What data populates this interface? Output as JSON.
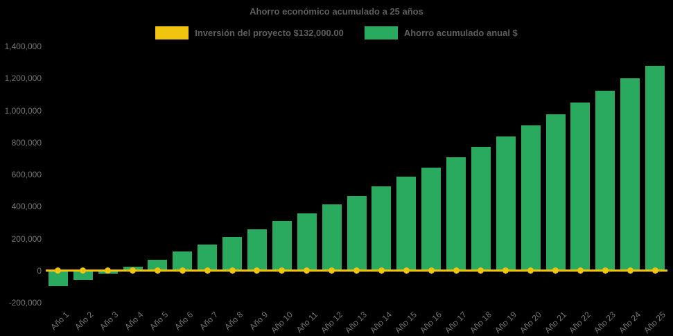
{
  "page": {
    "background_color": "#000000",
    "text_color_title": "#5f5f5f",
    "text_color_axis": "#767676"
  },
  "chart": {
    "title": "Ahorro económico acumulado a 25 años",
    "legend": [
      {
        "label": "Inversión del proyecto $132,000.00",
        "color": "#f1c40f",
        "series_type": "line"
      },
      {
        "label": "Ahorro acumulado anual $",
        "color": "#2aaa5e",
        "series_type": "bar"
      }
    ]
  },
  "chart_data": {
    "type": "bar",
    "title": "Ahorro económico acumulado a 25 años",
    "xlabel": "",
    "ylabel": "",
    "ylim": [
      -200000,
      1400000
    ],
    "ytick_interval": 200000,
    "grid": false,
    "legend_position": "top",
    "background": "#000000",
    "categories": [
      "Año 1",
      "Año 2",
      "Año 3",
      "Año 4",
      "Año 5",
      "Año 6",
      "Año 7",
      "Año 8",
      "Año 9",
      "Año 10",
      "Año 11",
      "Año 12",
      "Año 13",
      "Año 14",
      "Año 15",
      "Año 16",
      "Año 17",
      "Año 18",
      "Año 19",
      "Año 20",
      "Año 21",
      "Año 22",
      "Año 23",
      "Año 24",
      "Año 25"
    ],
    "series": [
      {
        "name": "Ahorro acumulado anual $",
        "type": "bar",
        "color": "#2aaa5e",
        "values": [
          -95000,
          -58000,
          -18000,
          27000,
          70000,
          118000,
          162000,
          209000,
          258000,
          310000,
          360000,
          413000,
          468000,
          525000,
          585000,
          645000,
          708000,
          772000,
          838000,
          906000,
          976000,
          1048000,
          1122000,
          1200000,
          1278000
        ]
      },
      {
        "name": "Inversión del proyecto $132,000.00",
        "type": "line",
        "color": "#f1c40f",
        "marker": "circle",
        "investment_amount_label": "$132,000.00",
        "values": [
          0,
          0,
          0,
          0,
          0,
          0,
          0,
          0,
          0,
          0,
          0,
          0,
          0,
          0,
          0,
          0,
          0,
          0,
          0,
          0,
          0,
          0,
          0,
          0,
          0
        ]
      }
    ],
    "yticks": [
      {
        "value": 1400000,
        "label": "1,400,000"
      },
      {
        "value": 1200000,
        "label": "1,200,000"
      },
      {
        "value": 1000000,
        "label": "1,000,000"
      },
      {
        "value": 800000,
        "label": "800,000"
      },
      {
        "value": 600000,
        "label": "600,000"
      },
      {
        "value": 400000,
        "label": "400,000"
      },
      {
        "value": 200000,
        "label": "200,000"
      },
      {
        "value": 0,
        "label": "0"
      },
      {
        "value": -200000,
        "label": "-200,000"
      }
    ]
  }
}
